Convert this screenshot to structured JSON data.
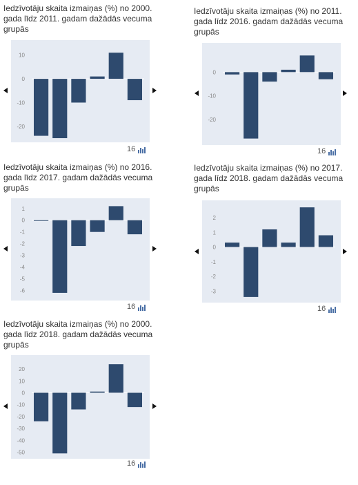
{
  "colors": {
    "bar": "#2e4a6e",
    "plot_bg": "#e6ebf3",
    "zero_line": "#ffffff"
  },
  "panels": [
    {
      "title": "Iedzīvotāju skaita izmaiņas (%) no 2000. gada līdz 2011. gadam dažādās vecuma grupās",
      "footer_label": "16",
      "footer_icon": "bar-chart-icon",
      "chart_data": {
        "type": "bar",
        "title": "Iedzīvotāju skaita izmaiņas (%) no 2000. gada līdz 2011. gadam dažādās vecuma grupās",
        "values": [
          -24,
          -25,
          -10,
          1,
          11,
          -9
        ],
        "yticks": [
          10,
          0,
          -10,
          -20
        ],
        "ylim": [
          -25,
          14
        ],
        "grid": false
      }
    },
    {
      "title": "Iedzīvotāju skaita izmaiņas (%) no 2011. gada līdz 2016. gadam dažādās vecuma grupās",
      "footer_label": "16",
      "footer_icon": "bar-chart-icon",
      "chart_data": {
        "type": "bar",
        "title": "Iedzīvotāju skaita izmaiņas (%) no 2011. gada līdz 2016. gadam dažādās vecuma grupās",
        "values": [
          -1,
          -28,
          -4,
          1,
          7,
          -3
        ],
        "yticks": [
          0,
          -10,
          -20
        ],
        "ylim": [
          -29,
          10
        ],
        "grid": false
      }
    },
    {
      "title": "Iedzīvotāju skaita izmaiņas (%) no 2016. gada līdz 2017. gadam dažādās vecuma grupās",
      "footer_label": "16",
      "footer_icon": "bar-chart-icon",
      "chart_data": {
        "type": "bar",
        "title": "Iedzīvotāju skaita izmaiņas (%) no 2016. gada līdz 2017. gadam dažādās vecuma grupās",
        "values": [
          0,
          -6.2,
          -2.2,
          -1,
          1.2,
          -1.2
        ],
        "yticks": [
          1,
          0,
          -1,
          -2,
          -3,
          -4,
          -5,
          -6
        ],
        "ylim": [
          -6.5,
          1.4
        ],
        "grid": false
      }
    },
    {
      "title": "Iedzīvotāju skaita izmaiņas (%) no 2017. gada līdz 2018. gadam dažādās vecuma grupās",
      "footer_label": "16",
      "footer_icon": "bar-chart-icon",
      "chart_data": {
        "type": "bar",
        "title": "Iedzīvotāju skaita izmaiņas (%) no 2017. gada līdz 2018. gadam dažādās vecuma grupās",
        "values": [
          0.3,
          -3.4,
          1.2,
          0.3,
          2.7,
          0.8
        ],
        "yticks": [
          2,
          1,
          0,
          -1,
          -2,
          -3
        ],
        "ylim": [
          -3.5,
          2.8
        ],
        "grid": false
      }
    },
    {
      "title": "Iedzīvotāju skaita izmaiņas (%) no 2000. gada līdz 2018. gadam dažādās vecuma grupās",
      "footer_label": "16",
      "footer_icon": "bar-chart-icon",
      "chart_data": {
        "type": "bar",
        "title": "Iedzīvotāju skaita izmaiņas (%) no 2000. gada līdz 2018. gadam dažādās vecuma grupās",
        "values": [
          -24,
          -51,
          -14,
          1,
          24,
          -12
        ],
        "yticks": [
          20,
          10,
          0,
          -10,
          -20,
          -30,
          -40,
          -50
        ],
        "ylim": [
          -52,
          27
        ],
        "grid": false
      }
    }
  ]
}
